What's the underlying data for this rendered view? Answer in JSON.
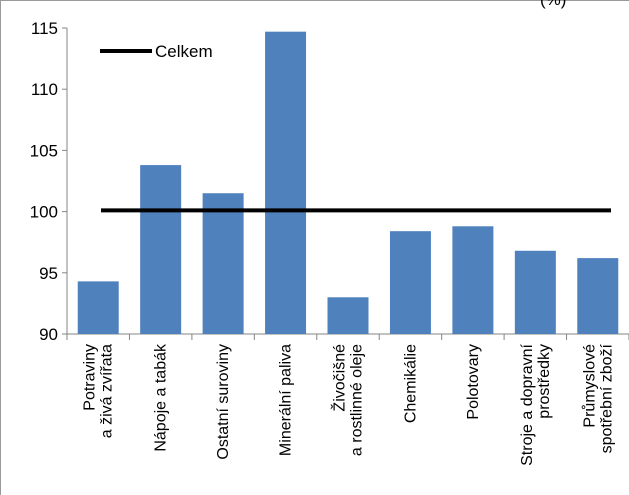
{
  "chart_data": {
    "type": "bar",
    "categories": [
      "Potraviny\na živá zvířata",
      "Nápoje a tabák",
      "Ostatní suroviny",
      "Minerální paliva",
      "Živočišné\na rostlinné oleje",
      "Chemikálie",
      "Polotovary",
      "Stroje a dopravní\nprostředky",
      "Průmyslové\nspotřební zboží"
    ],
    "values": [
      94.3,
      103.8,
      101.5,
      114.7,
      93.0,
      98.4,
      98.8,
      96.8,
      96.2
    ],
    "reference_line": {
      "name": "Celkem",
      "value": 100.1
    },
    "legend": {
      "label": "Celkem",
      "position": "top-left"
    },
    "ylim": [
      90,
      115
    ],
    "yticks": [
      "90",
      "95",
      "100",
      "105",
      "110",
      "115"
    ],
    "bar_color": "#4f81bd",
    "line_color": "#000000",
    "title": "",
    "xlabel": "",
    "ylabel": "",
    "grid": false
  },
  "header_fragment": "(%)"
}
